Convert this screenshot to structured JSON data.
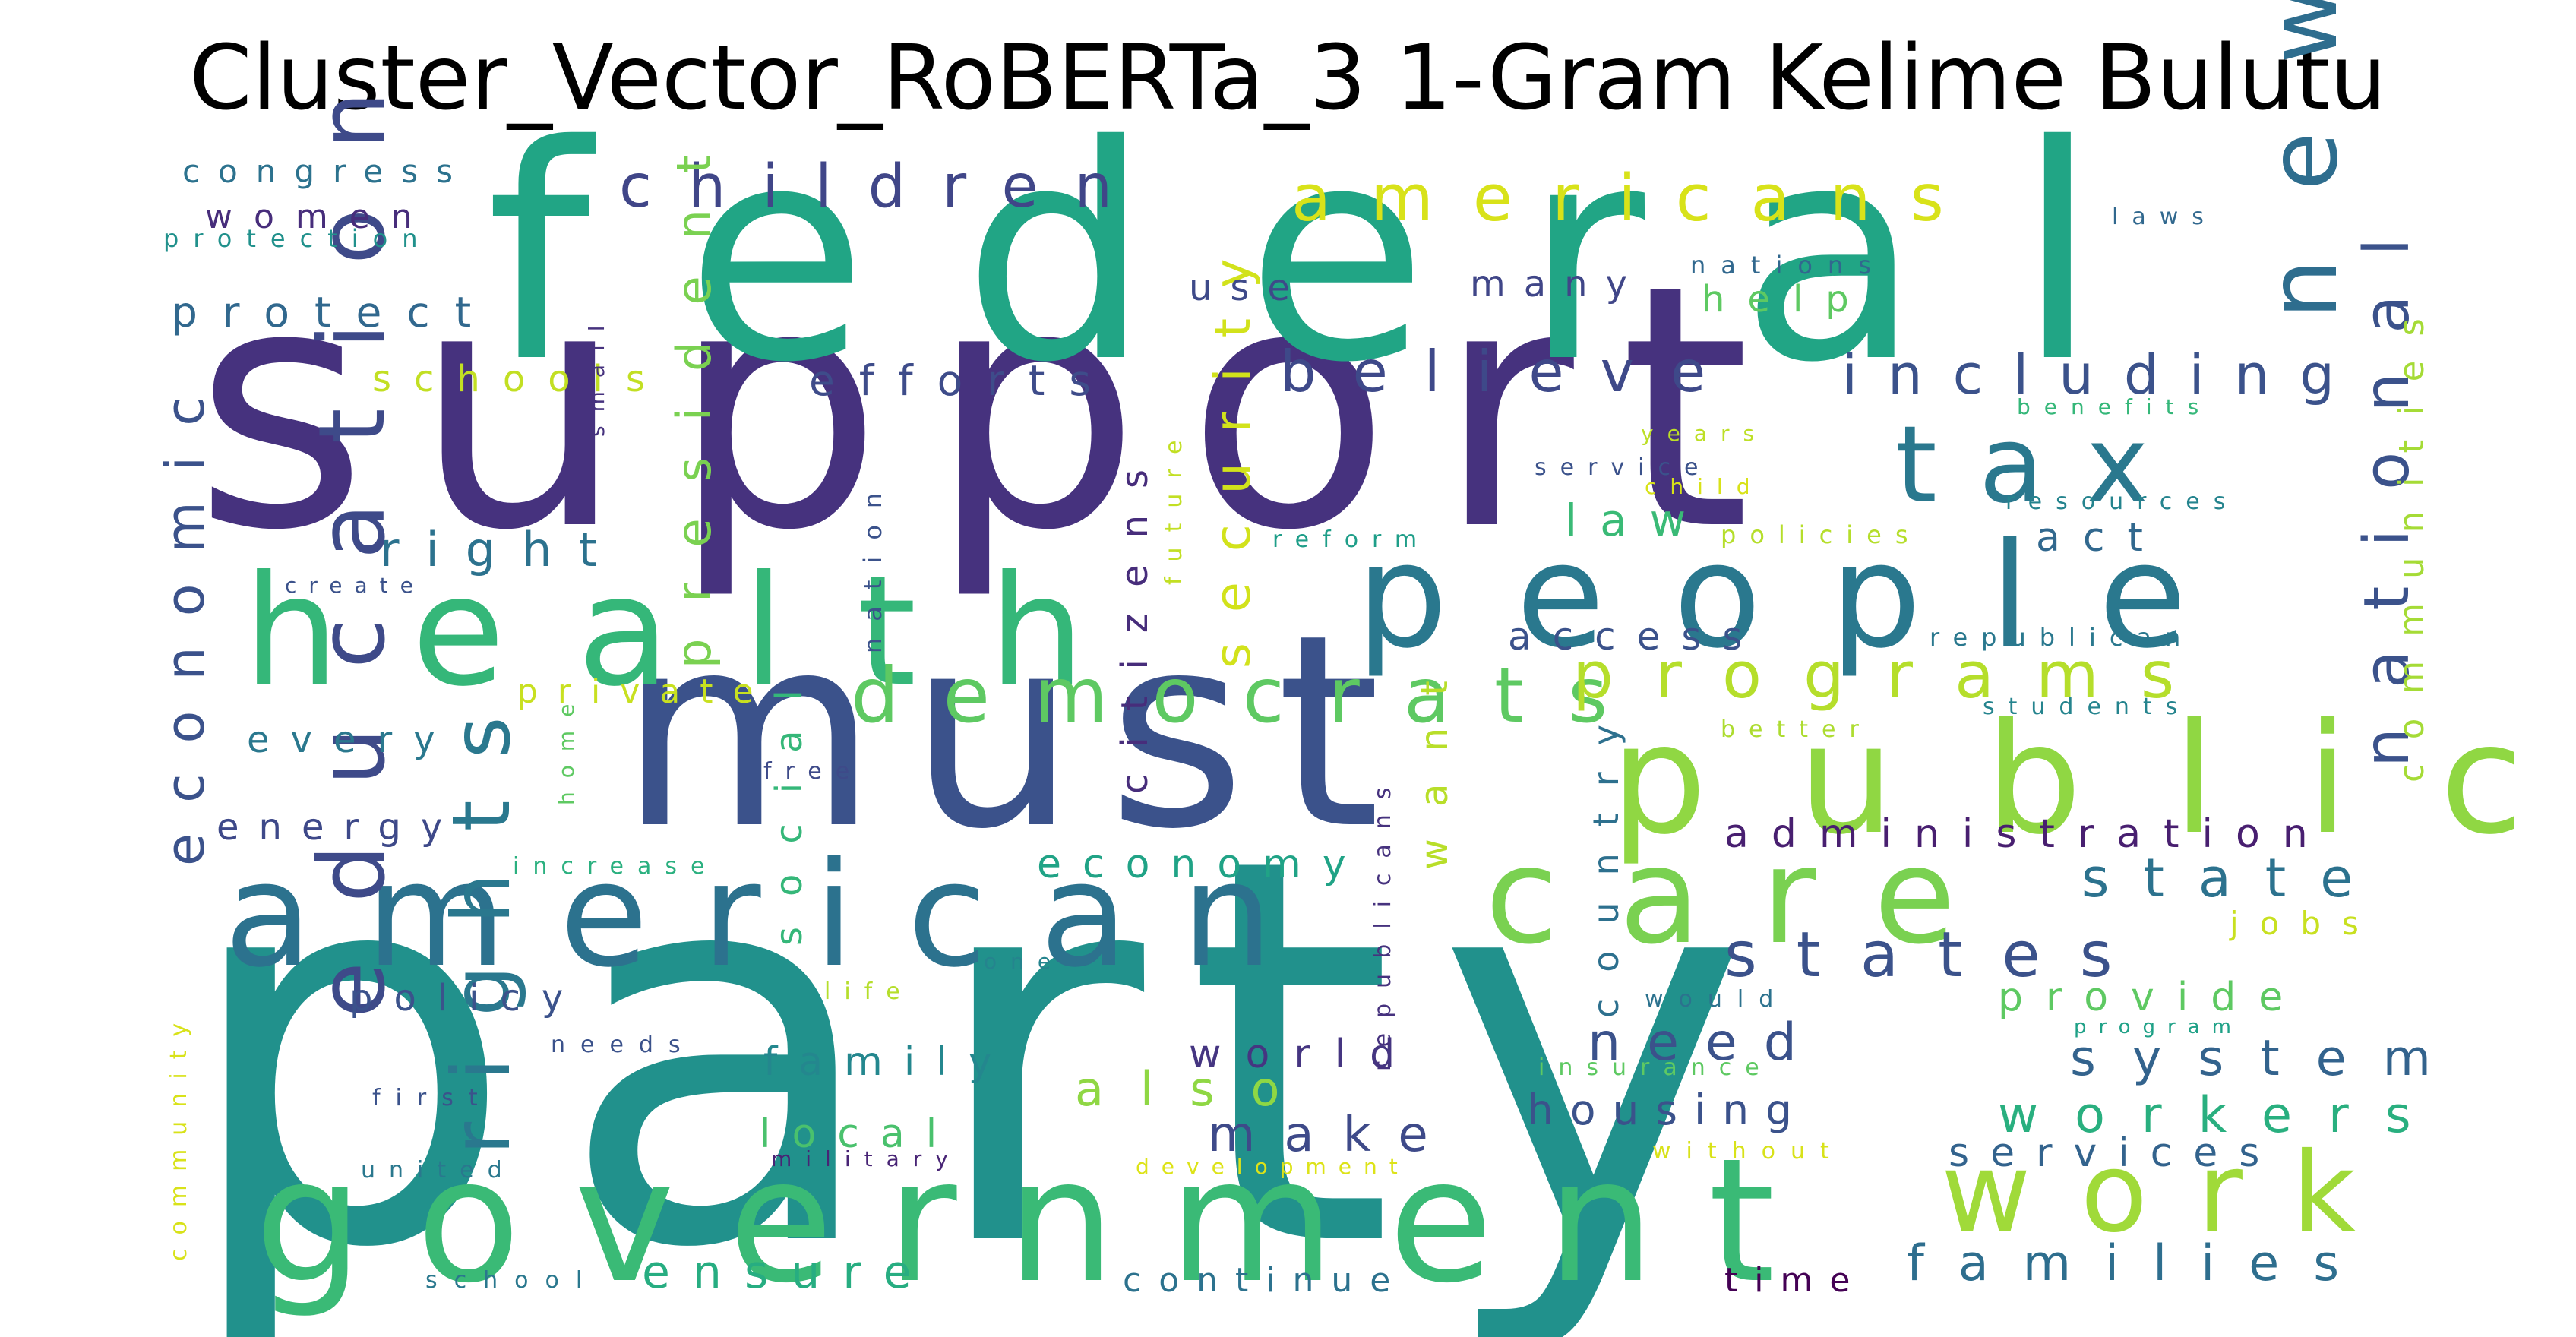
{
  "title": "Cluster_Vector_RoBERTa_3 1-Gram Kelime Bulutu",
  "palette": "viridis",
  "words": [
    {
      "text": "party",
      "color": "#21918c",
      "rank": 1,
      "orientation": "horizontal"
    },
    {
      "text": "support",
      "color": "#46327e",
      "rank": 2,
      "orientation": "horizontal"
    },
    {
      "text": "federal",
      "color": "#21a585",
      "rank": 3,
      "orientation": "horizontal"
    },
    {
      "text": "must",
      "color": "#3b528b",
      "rank": 4,
      "orientation": "horizontal"
    },
    {
      "text": "government",
      "color": "#3aba76",
      "rank": 5,
      "orientation": "horizontal"
    },
    {
      "text": "american",
      "color": "#2c728e",
      "rank": 6,
      "orientation": "horizontal"
    },
    {
      "text": "health",
      "color": "#35b779",
      "rank": 7,
      "orientation": "horizontal"
    },
    {
      "text": "public",
      "color": "#90d743",
      "rank": 8,
      "orientation": "horizontal"
    },
    {
      "text": "people",
      "color": "#2a788e",
      "rank": 9,
      "orientation": "horizontal"
    },
    {
      "text": "care",
      "color": "#7ad151",
      "rank": 10,
      "orientation": "horizontal"
    },
    {
      "text": "work",
      "color": "#a0da39",
      "rank": 11,
      "orientation": "horizontal"
    },
    {
      "text": "tax",
      "color": "#2a788e",
      "rank": 12,
      "orientation": "horizontal"
    },
    {
      "text": "new",
      "color": "#2e6d8e",
      "rank": 13,
      "orientation": "vertical"
    },
    {
      "text": "education",
      "color": "#3e4a89",
      "rank": 14,
      "orientation": "vertical"
    },
    {
      "text": "rights",
      "color": "#2a788e",
      "rank": 15,
      "orientation": "vertical"
    },
    {
      "text": "national",
      "color": "#3b528b",
      "rank": 16,
      "orientation": "vertical"
    },
    {
      "text": "democrats",
      "color": "#5ec962",
      "rank": 17,
      "orientation": "horizontal"
    },
    {
      "text": "americans",
      "color": "#d8e219",
      "rank": 18,
      "orientation": "horizontal"
    },
    {
      "text": "programs",
      "color": "#b5de2b",
      "rank": 19,
      "orientation": "horizontal"
    },
    {
      "text": "states",
      "color": "#3b528b",
      "rank": 20,
      "orientation": "horizontal"
    },
    {
      "text": "children",
      "color": "#404688",
      "rank": 21,
      "orientation": "horizontal"
    },
    {
      "text": "believe",
      "color": "#3e4989",
      "rank": 22,
      "orientation": "horizontal"
    },
    {
      "text": "including",
      "color": "#3b528b",
      "rank": 23,
      "orientation": "horizontal"
    },
    {
      "text": "economic",
      "color": "#3b528b",
      "rank": 24,
      "orientation": "vertical"
    },
    {
      "text": "state",
      "color": "#2c728e",
      "rank": 25,
      "orientation": "horizontal"
    },
    {
      "text": "system",
      "color": "#33638d",
      "rank": 26,
      "orientation": "horizontal"
    },
    {
      "text": "workers",
      "color": "#29af7f",
      "rank": 27,
      "orientation": "horizontal"
    },
    {
      "text": "families",
      "color": "#2e6e8e",
      "rank": 28,
      "orientation": "horizontal"
    },
    {
      "text": "administration",
      "color": "#481f70",
      "rank": 29,
      "orientation": "horizontal"
    },
    {
      "text": "security",
      "color": "#d2e21b",
      "rank": 30,
      "orientation": "vertical"
    },
    {
      "text": "president",
      "color": "#7ad151",
      "rank": 31,
      "orientation": "vertical"
    },
    {
      "text": "need",
      "color": "#3b528b",
      "rank": 32,
      "orientation": "horizontal"
    },
    {
      "text": "make",
      "color": "#3e4a89",
      "rank": 33,
      "orientation": "horizontal"
    },
    {
      "text": "housing",
      "color": "#3b528b",
      "rank": 34,
      "orientation": "horizontal"
    },
    {
      "text": "also",
      "color": "#8fd744",
      "rank": 35,
      "orientation": "horizontal"
    },
    {
      "text": "ensure",
      "color": "#27ad81",
      "rank": 36,
      "orientation": "horizontal"
    },
    {
      "text": "right",
      "color": "#2c728e",
      "rank": 37,
      "orientation": "horizontal"
    },
    {
      "text": "law",
      "color": "#3aba76",
      "rank": 38,
      "orientation": "horizontal"
    },
    {
      "text": "act",
      "color": "#31688e",
      "rank": 39,
      "orientation": "horizontal"
    },
    {
      "text": "communities",
      "color": "#a5db36",
      "rank": 40,
      "orientation": "vertical"
    },
    {
      "text": "country",
      "color": "#2d708e",
      "rank": 41,
      "orientation": "vertical"
    },
    {
      "text": "citizens",
      "color": "#472d7b",
      "rank": 42,
      "orientation": "vertical"
    },
    {
      "text": "want",
      "color": "#b8de29",
      "rank": 43,
      "orientation": "vertical"
    },
    {
      "text": "protect",
      "color": "#31688e",
      "rank": 44,
      "orientation": "horizontal"
    },
    {
      "text": "efforts",
      "color": "#3e4c8a",
      "rank": 45,
      "orientation": "horizontal"
    },
    {
      "text": "economy",
      "color": "#20a386",
      "rank": 46,
      "orientation": "horizontal"
    },
    {
      "text": "social",
      "color": "#35b779",
      "rank": 47,
      "orientation": "vertical"
    },
    {
      "text": "provide",
      "color": "#5ec962",
      "rank": 48,
      "orientation": "horizontal"
    },
    {
      "text": "world",
      "color": "#453581",
      "rank": 49,
      "orientation": "horizontal"
    },
    {
      "text": "family",
      "color": "#24878e",
      "rank": 50,
      "orientation": "horizontal"
    },
    {
      "text": "local",
      "color": "#4ac16d",
      "rank": 51,
      "orientation": "horizontal"
    },
    {
      "text": "services",
      "color": "#33638d",
      "rank": 52,
      "orientation": "horizontal"
    },
    {
      "text": "access",
      "color": "#3b528b",
      "rank": 53,
      "orientation": "horizontal"
    },
    {
      "text": "policy",
      "color": "#3b528b",
      "rank": 54,
      "orientation": "horizontal"
    },
    {
      "text": "energy",
      "color": "#3e4989",
      "rank": 55,
      "orientation": "horizontal"
    },
    {
      "text": "every",
      "color": "#2a788e",
      "rank": 56,
      "orientation": "horizontal"
    },
    {
      "text": "continue",
      "color": "#2c728e",
      "rank": 57,
      "orientation": "horizontal"
    },
    {
      "text": "time",
      "color": "#440154",
      "rank": 58,
      "orientation": "horizontal"
    },
    {
      "text": "women",
      "color": "#472d7b",
      "rank": 59,
      "orientation": "horizontal"
    },
    {
      "text": "schools",
      "color": "#c2df23",
      "rank": 60,
      "orientation": "horizontal"
    },
    {
      "text": "private",
      "color": "#c8e020",
      "rank": 61,
      "orientation": "horizontal"
    },
    {
      "text": "help",
      "color": "#5ec962",
      "rank": 62,
      "orientation": "horizontal"
    },
    {
      "text": "many",
      "color": "#404688",
      "rank": 63,
      "orientation": "horizontal"
    },
    {
      "text": "use",
      "color": "#3e4a89",
      "rank": 64,
      "orientation": "horizontal"
    },
    {
      "text": "jobs",
      "color": "#c8e020",
      "rank": 65,
      "orientation": "horizontal"
    },
    {
      "text": "congress",
      "color": "#2c728e",
      "rank": 66,
      "orientation": "horizontal"
    },
    {
      "text": "protection",
      "color": "#21918c",
      "rank": 67,
      "orientation": "horizontal"
    },
    {
      "text": "laws",
      "color": "#31688e",
      "rank": 68,
      "orientation": "horizontal"
    },
    {
      "text": "nations",
      "color": "#31688e",
      "rank": 69,
      "orientation": "horizontal"
    },
    {
      "text": "benefits",
      "color": "#35b779",
      "rank": 70,
      "orientation": "horizontal"
    },
    {
      "text": "years",
      "color": "#bddf26",
      "rank": 71,
      "orientation": "horizontal"
    },
    {
      "text": "service",
      "color": "#3b528b",
      "rank": 72,
      "orientation": "horizontal"
    },
    {
      "text": "child",
      "color": "#d8e219",
      "rank": 73,
      "orientation": "horizontal"
    },
    {
      "text": "reform",
      "color": "#1f9e89",
      "rank": 74,
      "orientation": "horizontal"
    },
    {
      "text": "policies",
      "color": "#b5de2b",
      "rank": 75,
      "orientation": "horizontal"
    },
    {
      "text": "resources",
      "color": "#25848e",
      "rank": 76,
      "orientation": "horizontal"
    },
    {
      "text": "republican",
      "color": "#2a788e",
      "rank": 77,
      "orientation": "horizontal"
    },
    {
      "text": "students",
      "color": "#25848e",
      "rank": 78,
      "orientation": "horizontal"
    },
    {
      "text": "better",
      "color": "#addc30",
      "rank": 79,
      "orientation": "horizontal"
    },
    {
      "text": "create",
      "color": "#3b528b",
      "rank": 80,
      "orientation": "horizontal"
    },
    {
      "text": "small",
      "color": "#46327e",
      "rank": 81,
      "orientation": "vertical"
    },
    {
      "text": "nation",
      "color": "#3b528b",
      "rank": 82,
      "orientation": "vertical"
    },
    {
      "text": "future",
      "color": "#c2df23",
      "rank": 83,
      "orientation": "vertical"
    },
    {
      "text": "home",
      "color": "#5ec962",
      "rank": 84,
      "orientation": "vertical"
    },
    {
      "text": "free",
      "color": "#3e4a89",
      "rank": 85,
      "orientation": "horizontal"
    },
    {
      "text": "increase",
      "color": "#2ab07f",
      "rank": 86,
      "orientation": "horizontal"
    },
    {
      "text": "republicans",
      "color": "#46327e",
      "rank": 87,
      "orientation": "vertical"
    },
    {
      "text": "life",
      "color": "#b5de2b",
      "rank": 88,
      "orientation": "horizontal"
    },
    {
      "text": "one",
      "color": "#25848e",
      "rank": 89,
      "orientation": "horizontal"
    },
    {
      "text": "needs",
      "color": "#3b528b",
      "rank": 90,
      "orientation": "horizontal"
    },
    {
      "text": "first",
      "color": "#3b528b",
      "rank": 91,
      "orientation": "horizontal"
    },
    {
      "text": "united",
      "color": "#2a788e",
      "rank": 92,
      "orientation": "horizontal"
    },
    {
      "text": "military",
      "color": "#482475",
      "rank": 93,
      "orientation": "horizontal"
    },
    {
      "text": "development",
      "color": "#dde318",
      "rank": 94,
      "orientation": "horizontal"
    },
    {
      "text": "would",
      "color": "#2c728e",
      "rank": 95,
      "orientation": "horizontal"
    },
    {
      "text": "program",
      "color": "#1fa187",
      "rank": 96,
      "orientation": "horizontal"
    },
    {
      "text": "insurance",
      "color": "#5ec962",
      "rank": 97,
      "orientation": "horizontal"
    },
    {
      "text": "without",
      "color": "#d8e219",
      "rank": 98,
      "orientation": "horizontal"
    },
    {
      "text": "school",
      "color": "#2a788e",
      "rank": 99,
      "orientation": "horizontal"
    },
    {
      "text": "community",
      "color": "#d8e219",
      "rank": 100,
      "orientation": "vertical"
    }
  ]
}
